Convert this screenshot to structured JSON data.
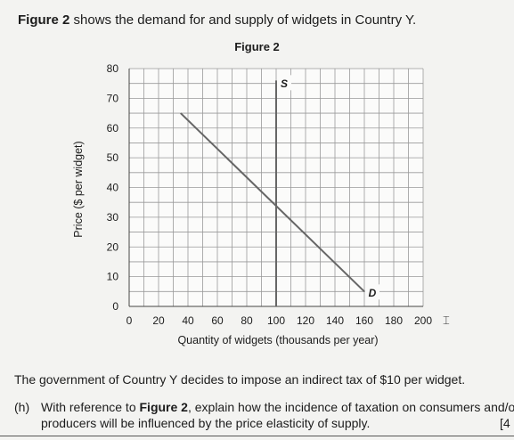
{
  "intro": {
    "figure_ref": "Figure 2",
    "text": " shows the demand for and supply of widgets in Country Y."
  },
  "chart_data": {
    "type": "line",
    "title": "Figure 2",
    "xlabel": "Quantity of widgets (thousands per year)",
    "ylabel": "Price ($ per widget)",
    "xlim": [
      0,
      200
    ],
    "ylim": [
      0,
      80
    ],
    "x_ticks": [
      0,
      20,
      40,
      60,
      80,
      100,
      120,
      140,
      160,
      180,
      200
    ],
    "y_ticks": [
      0,
      10,
      20,
      30,
      40,
      50,
      60,
      70,
      80
    ],
    "grid": true,
    "series": [
      {
        "name": "S",
        "x": [
          100,
          100
        ],
        "y": [
          0,
          76
        ],
        "color": "#666666"
      },
      {
        "name": "D",
        "x": [
          35,
          160
        ],
        "y": [
          65,
          5
        ],
        "color": "#666666"
      }
    ]
  },
  "question": {
    "intro": "The government of Country Y decides to impose an indirect tax of $10 per widget.",
    "part_label": "(h)",
    "line1_prefix": "With reference to ",
    "line1_ref": "Figure 2",
    "line1_suffix": ", explain how the incidence of taxation on consumers and/or",
    "line2": "producers will be influenced by the price elasticity of supply.",
    "marks": "[4"
  },
  "icons": {
    "cursor": "text-cursor-icon"
  }
}
